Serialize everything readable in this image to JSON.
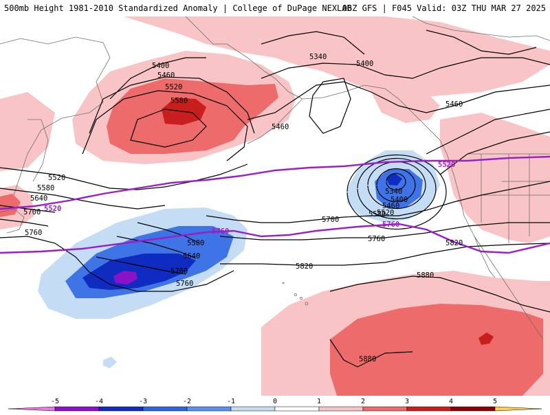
{
  "header": {
    "left_title": "500mb Height 1981-2010 Standardized Anomaly | College of DuPage NEXLAB",
    "right_title": "06Z GFS | F045 Valid: 03Z THU MAR 27 2025"
  },
  "colors": {
    "anom_pos1": "#f8c4c6",
    "anom_pos2": "#ee6b6b",
    "anom_pos3": "#c81e1e",
    "anom_neg1": "#c4ddf5",
    "anom_neg2": "#3f74e6",
    "anom_neg3": "#0f2bc0",
    "anom_neg4": "#8a13c8",
    "highlight_contour": "#9a1fc8",
    "land_outline": "#6e6e6e"
  },
  "contour_labels": [
    {
      "name": "height-5340-alaska",
      "text": "5340"
    },
    {
      "name": "height-5400-gulf",
      "text": "5400"
    },
    {
      "name": "height-5400-bering",
      "text": "5400"
    },
    {
      "name": "height-5460-bering",
      "text": "5460"
    },
    {
      "name": "height-5520-bering",
      "text": "5520"
    },
    {
      "name": "height-5580-bering",
      "text": "5580"
    },
    {
      "name": "height-5460-aleutians",
      "text": "5460"
    },
    {
      "name": "height-5460-canada",
      "text": "5460"
    },
    {
      "name": "height-5520-west",
      "text": "5520"
    },
    {
      "name": "height-5580-west",
      "text": "5580"
    },
    {
      "name": "height-5640-west",
      "text": "5640"
    },
    {
      "name": "height-5700-west",
      "text": "5700"
    },
    {
      "name": "height-5760-west",
      "text": "5760"
    },
    {
      "name": "height-5340-low",
      "text": "5340"
    },
    {
      "name": "height-5400-low",
      "text": "5400"
    },
    {
      "name": "height-5460-low",
      "text": "5460"
    },
    {
      "name": "height-5520-low",
      "text": "5520"
    },
    {
      "name": "height-5580-low",
      "text": "5580"
    },
    {
      "name": "height-5700-central",
      "text": "5700"
    },
    {
      "name": "height-5760-central",
      "text": "5760"
    },
    {
      "name": "height-5580-pacific",
      "text": "5580"
    },
    {
      "name": "height-5640-pacific",
      "text": "5640"
    },
    {
      "name": "height-5700-pacific",
      "text": "5700"
    },
    {
      "name": "height-5760-pacific",
      "text": "5760"
    },
    {
      "name": "height-5820-central",
      "text": "5820"
    },
    {
      "name": "height-5820-east",
      "text": "5820"
    },
    {
      "name": "height-5880-central",
      "text": "5880"
    },
    {
      "name": "height-5880-south",
      "text": "5880"
    }
  ],
  "highlight_labels": {
    "h5520_west": "5520",
    "h5520_east": "5520",
    "h5760_west": "5760",
    "h5760_east": "5760"
  },
  "colorbar": {
    "ticks": [
      "-5",
      "-4",
      "-3",
      "-2",
      "-1",
      "0",
      "1",
      "2",
      "3",
      "4",
      "5"
    ],
    "colors": [
      "#e77be0",
      "#8a13c8",
      "#0f2bc0",
      "#2f63df",
      "#5d90ec",
      "#c4ddf5",
      "#ffffff",
      "#f8c4c6",
      "#ee6b6b",
      "#c81e1e",
      "#8b0000",
      "#ff9d00",
      "#ffd24a"
    ]
  }
}
